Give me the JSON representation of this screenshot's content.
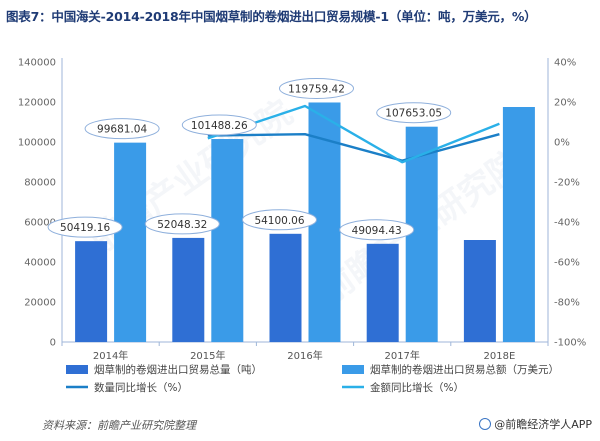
{
  "title": "图表7：中国海关-2014-2018年中国烟草制的卷烟进出口贸易规模-1（单位：吨，万美元，%）",
  "source": "资料来源：前瞻产业研究院整理",
  "brand": "@前瞻经济学人APP",
  "chart_data": {
    "type": "bar",
    "categories": [
      "2014年",
      "2015年",
      "2016年",
      "2017年",
      "2018E"
    ],
    "series": [
      {
        "name": "烟草制的卷烟进出口贸易总量（吨）",
        "axis": "left",
        "kind": "bar",
        "color": "#2f6fd4",
        "values": [
          50419.16,
          52048.32,
          54100.06,
          49094.43,
          51000
        ]
      },
      {
        "name": "烟草制的卷烟进出口贸易总额（万美元）",
        "axis": "left",
        "kind": "bar",
        "color": "#3a9be8",
        "values": [
          99681.04,
          101488.26,
          119759.42,
          107653.05,
          117500
        ]
      },
      {
        "name": "数量同比增长（%）",
        "axis": "right",
        "kind": "line",
        "color": "#1b7fc7",
        "values": [
          null,
          3.2,
          3.9,
          -9.3,
          3.9
        ]
      },
      {
        "name": "金额同比增长（%）",
        "axis": "right",
        "kind": "line",
        "color": "#2ab0e8",
        "values": [
          null,
          1.8,
          18.0,
          -10.1,
          9.1
        ]
      }
    ],
    "data_labels": {
      "volume": [
        "50419.16",
        "52048.32",
        "54100.06",
        "49094.43"
      ],
      "value": [
        "99681.04",
        "101488.26",
        "119759.42",
        "107653.05"
      ]
    },
    "ylim": [
      0,
      140000
    ],
    "yticks": [
      "0",
      "20000",
      "40000",
      "60000",
      "80000",
      "100000",
      "120000",
      "140000"
    ],
    "y2lim": [
      -100,
      40
    ],
    "y2ticks": [
      "-100%",
      "-80%",
      "-60%",
      "-40%",
      "-20%",
      "0%",
      "20%",
      "40%"
    ],
    "grid": false,
    "legend": "bottom"
  }
}
